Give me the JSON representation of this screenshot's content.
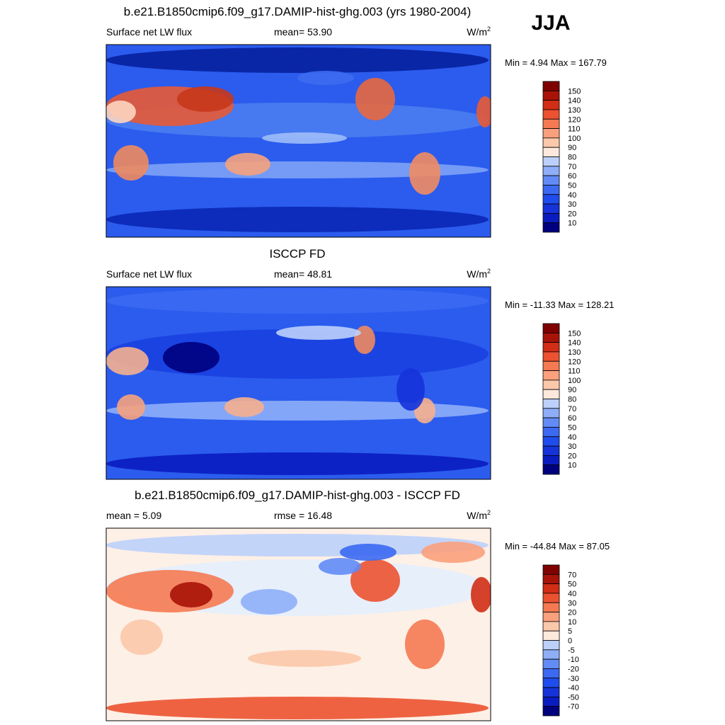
{
  "season": "JJA",
  "panels": [
    {
      "title": "b.e21.B1850cmip6.f09_g17.DAMIP-hist-ghg.003 (yrs 1980-2004)",
      "left": "Surface net LW flux",
      "center": "mean=  53.90",
      "units": "W/m",
      "units_sup": "2",
      "minmax": "Min =   4.94 Max = 167.79",
      "colorbar": [
        "150",
        "140",
        "130",
        "120",
        "110",
        "100",
        "90",
        "80",
        "70",
        "60",
        "50",
        "40",
        "30",
        "20",
        "10"
      ]
    },
    {
      "title": "ISCCP FD",
      "left": "Surface net LW flux",
      "center": "mean=  48.81",
      "units": "W/m",
      "units_sup": "2",
      "minmax": "Min = -11.33 Max = 128.21",
      "colorbar": [
        "150",
        "140",
        "130",
        "120",
        "110",
        "100",
        "90",
        "80",
        "70",
        "60",
        "50",
        "40",
        "30",
        "20",
        "10"
      ]
    },
    {
      "title": "b.e21.B1850cmip6.f09_g17.DAMIP-hist-ghg.003 - ISCCP FD",
      "left": "mean =   5.09",
      "center": "rmse =  16.48",
      "units": "W/m",
      "units_sup": "2",
      "minmax": "Min = -44.84 Max =  87.05",
      "colorbar": [
        "70",
        "50",
        "40",
        "30",
        "20",
        "10",
        "5",
        "0",
        "-5",
        "-10",
        "-20",
        "-30",
        "-40",
        "-50",
        "-70"
      ]
    }
  ]
}
